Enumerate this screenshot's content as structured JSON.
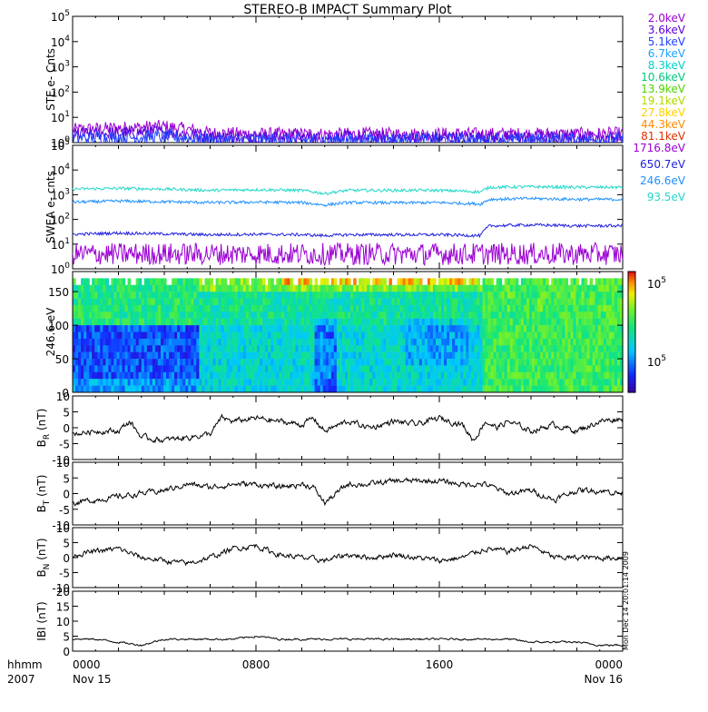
{
  "title": "STEREO-B IMPACT Summary Plot",
  "time_axis": {
    "row1_label": "hhmm",
    "row2_label": "2007",
    "ticks": [
      {
        "top": "0000",
        "bottom": "Nov 15"
      },
      {
        "top": "0800",
        "bottom": ""
      },
      {
        "top": "1600",
        "bottom": ""
      },
      {
        "top": "0000",
        "bottom": "Nov 16"
      }
    ],
    "range_hours": [
      0,
      24
    ]
  },
  "stamp": "Mon Dec 14 20:01:14 2009",
  "legend_ste": [
    {
      "label": "2.0keV",
      "color": "#9b00d3"
    },
    {
      "label": "3.6keV",
      "color": "#5a00d8"
    },
    {
      "label": "5.1keV",
      "color": "#1f3fff"
    },
    {
      "label": "6.7keV",
      "color": "#1ea0ff"
    },
    {
      "label": "8.3keV",
      "color": "#00d0c8"
    },
    {
      "label": "10.6keV",
      "color": "#00c87a"
    },
    {
      "label": "13.9keV",
      "color": "#4fd000"
    },
    {
      "label": "19.1keV",
      "color": "#b0d800"
    },
    {
      "label": "27.8keV",
      "color": "#ffd000"
    },
    {
      "label": "44.3keV",
      "color": "#ff8c00"
    },
    {
      "label": "81.1keV",
      "color": "#e03000"
    }
  ],
  "legend_swea": [
    {
      "label": "1716.8eV",
      "color": "#9b00d3"
    },
    {
      "label": "650.7eV",
      "color": "#1f1fe0"
    },
    {
      "label": "246.6eV",
      "color": "#1e90ff"
    },
    {
      "label": "93.5eV",
      "color": "#20d8c8"
    }
  ],
  "colorbar": {
    "top_label": "10",
    "top_exp": "5",
    "mid_label": "10",
    "mid_exp": "5"
  },
  "chart_data": [
    {
      "type": "line",
      "name": "ste",
      "ylabel": "STE e- Cnts",
      "yscale": "log",
      "ylim": [
        1,
        100000
      ],
      "yticks": [
        {
          "base": "10",
          "exp": "0"
        },
        {
          "base": "10",
          "exp": "1"
        },
        {
          "base": "10",
          "exp": "2"
        },
        {
          "base": "10",
          "exp": "3"
        },
        {
          "base": "10",
          "exp": "4"
        },
        {
          "base": "10",
          "exp": "5"
        }
      ],
      "x": [
        0,
        2,
        4,
        6,
        8,
        10,
        12,
        14,
        16,
        18,
        20,
        22,
        24
      ],
      "series": [
        {
          "name": "2.0keV",
          "values": [
            3.0,
            3.5,
            4.0,
            2.2,
            2.0,
            2.0,
            2.0,
            2.0,
            2.0,
            2.0,
            2.0,
            2.0,
            2.1
          ]
        },
        {
          "name": "3.6keV",
          "values": [
            2.0,
            2.2,
            2.5,
            1.6,
            1.5,
            1.5,
            1.5,
            1.5,
            1.5,
            1.5,
            1.5,
            1.5,
            1.5
          ]
        },
        {
          "name": "5.1keV",
          "values": [
            1.4,
            1.5,
            1.6,
            1.2,
            1.2,
            1.2,
            1.2,
            1.2,
            1.2,
            1.2,
            1.2,
            1.2,
            1.2
          ]
        }
      ]
    },
    {
      "type": "line",
      "name": "swea",
      "ylabel": "SWEA e- cnts",
      "yscale": "log",
      "ylim": [
        1,
        100000
      ],
      "yticks": [
        {
          "base": "10",
          "exp": "0"
        },
        {
          "base": "10",
          "exp": "1"
        },
        {
          "base": "10",
          "exp": "2"
        },
        {
          "base": "10",
          "exp": "3"
        },
        {
          "base": "10",
          "exp": "4"
        },
        {
          "base": "10",
          "exp": "5"
        }
      ],
      "x": [
        0,
        2,
        4,
        6,
        8,
        10,
        11,
        12,
        14,
        16,
        17.8,
        18.2,
        20,
        22,
        24
      ],
      "series": [
        {
          "name": "93.5eV",
          "values": [
            1700,
            1800,
            1700,
            1500,
            1600,
            1500,
            1100,
            1500,
            1500,
            1500,
            1300,
            2000,
            2100,
            2000,
            2000
          ]
        },
        {
          "name": "246.6eV",
          "values": [
            500,
            550,
            520,
            480,
            500,
            480,
            380,
            480,
            470,
            480,
            420,
            650,
            700,
            650,
            650
          ]
        },
        {
          "name": "650.7eV",
          "values": [
            25,
            28,
            26,
            24,
            25,
            24,
            22,
            24,
            24,
            24,
            22,
            55,
            60,
            55,
            55
          ]
        },
        {
          "name": "1716.8eV",
          "values": [
            4,
            4,
            4,
            4,
            4,
            4,
            4,
            4,
            4,
            4,
            4,
            4,
            4,
            4,
            4
          ]
        }
      ]
    },
    {
      "type": "heatmap",
      "name": "pitch",
      "ylabel": "246.6 eV",
      "ylim": [
        0,
        180
      ],
      "yticks": [
        "0",
        "50",
        "100",
        "150"
      ]
    },
    {
      "type": "line",
      "name": "br",
      "ylabel_main": "B",
      "ylabel_sub": "R",
      "ylabel_unit": " (nT)",
      "ylim": [
        -10,
        10
      ],
      "yticks": [
        "-10",
        "-5",
        "0",
        "5",
        "10"
      ],
      "x": [
        0,
        1,
        2,
        2.5,
        3,
        4,
        5,
        6,
        6.5,
        7,
        8,
        9,
        10,
        10.5,
        11,
        12,
        13,
        14,
        15,
        16,
        17,
        17.5,
        18,
        18.5,
        19,
        20,
        21,
        22,
        23,
        24
      ],
      "values": [
        -2,
        -1,
        -1,
        2,
        -3,
        -4,
        -3,
        -2,
        3,
        2,
        3,
        2,
        1,
        3,
        -1,
        2,
        0,
        2,
        1,
        3,
        1,
        -4,
        2,
        0,
        2,
        -1,
        1,
        -1,
        2,
        3
      ]
    },
    {
      "type": "line",
      "name": "bt",
      "ylabel_main": "B",
      "ylabel_sub": "T",
      "ylabel_unit": " (nT)",
      "ylim": [
        -10,
        10
      ],
      "yticks": [
        "-10",
        "-5",
        "0",
        "5",
        "10"
      ],
      "x": [
        0,
        1,
        2,
        3,
        4,
        5,
        6,
        7,
        8,
        9,
        10,
        10.5,
        11,
        12,
        13,
        14,
        15,
        16,
        17,
        18,
        19,
        20,
        21,
        22,
        23,
        24
      ],
      "values": [
        -3,
        -2,
        -1,
        0,
        1,
        3,
        2,
        3,
        3,
        2,
        3,
        2,
        -3,
        3,
        3,
        4,
        4,
        4,
        3,
        3,
        0,
        1,
        -2,
        1,
        1,
        0
      ]
    },
    {
      "type": "line",
      "name": "bn",
      "ylabel_main": "B",
      "ylabel_sub": "N",
      "ylabel_unit": " (nT)",
      "ylim": [
        -10,
        10
      ],
      "yticks": [
        "-10",
        "-5",
        "0",
        "5",
        "10"
      ],
      "x": [
        0,
        1,
        2,
        3,
        4,
        5,
        6,
        7,
        8,
        9,
        10,
        11,
        12,
        13,
        14,
        15,
        16,
        17,
        18,
        19,
        20,
        21,
        22,
        23,
        24
      ],
      "values": [
        1,
        2,
        3,
        0,
        -1,
        -2,
        0,
        3,
        4,
        1,
        0,
        -1,
        1,
        0,
        1,
        0,
        -1,
        0,
        3,
        2,
        4,
        0,
        0,
        0,
        0
      ]
    },
    {
      "type": "line",
      "name": "bmag",
      "ylabel_main": "IBI (nT)",
      "ylim": [
        0,
        20
      ],
      "yticks": [
        "0",
        "5",
        "10",
        "15",
        "20"
      ],
      "x": [
        0,
        1,
        2,
        3,
        4,
        5,
        6,
        7,
        8,
        9,
        10,
        11,
        12,
        13,
        14,
        15,
        16,
        17,
        18,
        19,
        20,
        21,
        22,
        23,
        24
      ],
      "values": [
        4,
        4,
        3,
        2,
        4,
        4,
        4,
        4,
        5,
        4,
        4,
        4,
        4,
        4,
        4,
        4,
        4,
        4,
        4,
        4,
        3,
        3,
        3,
        2,
        2
      ]
    }
  ]
}
